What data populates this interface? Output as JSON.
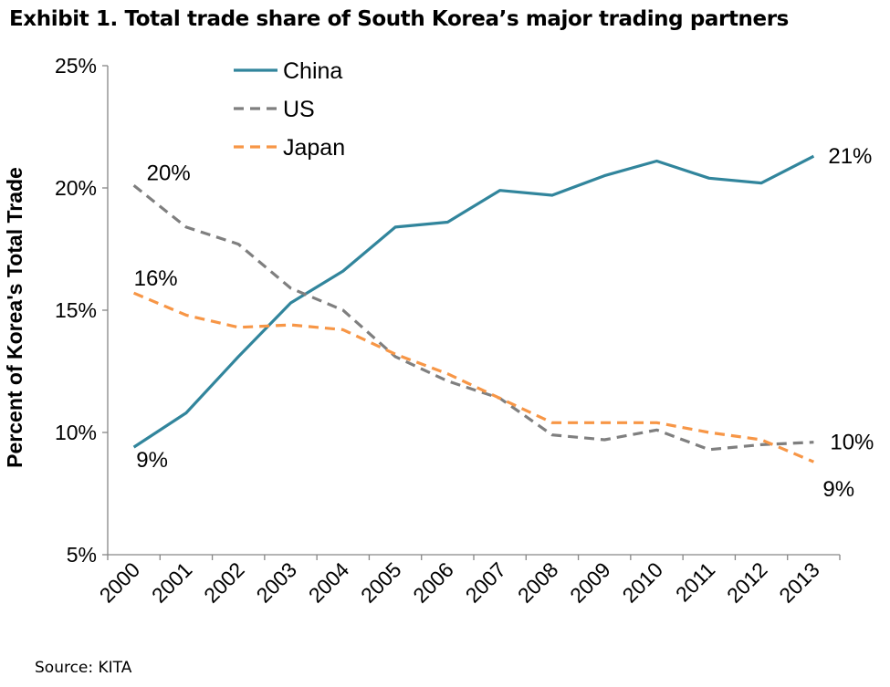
{
  "title": "Exhibit 1. Total trade share of South Korea’s major trading partners",
  "source": "Source: KITA",
  "chart_data": {
    "type": "line",
    "title": "Exhibit 1. Total trade share of South Korea’s major trading partners",
    "xlabel": "",
    "ylabel": "Percent of Korea's Total Trade",
    "x": [
      "2000",
      "2001",
      "2002",
      "2003",
      "2004",
      "2005",
      "2006",
      "2007",
      "2008",
      "2009",
      "2010",
      "2011",
      "2012",
      "2013"
    ],
    "ylim": [
      5,
      25
    ],
    "yticks": [
      5,
      10,
      15,
      20,
      25
    ],
    "ytick_labels": [
      "5%",
      "10%",
      "15%",
      "20%",
      "25%"
    ],
    "legend_position": "top-left",
    "series": [
      {
        "name": "China",
        "color": "#31859C",
        "dash": "solid",
        "values": [
          9.4,
          10.8,
          13.1,
          15.3,
          16.6,
          18.4,
          18.6,
          19.9,
          19.7,
          20.5,
          21.1,
          20.4,
          20.2,
          21.3
        ]
      },
      {
        "name": "US",
        "color": "#7F7F7F",
        "dash": "dashed",
        "values": [
          20.1,
          18.4,
          17.7,
          15.9,
          15.0,
          13.1,
          12.1,
          11.4,
          9.9,
          9.7,
          10.1,
          9.3,
          9.5,
          9.6
        ]
      },
      {
        "name": "Japan",
        "color": "#F79646",
        "dash": "dashed",
        "values": [
          15.7,
          14.8,
          14.3,
          14.4,
          14.2,
          13.2,
          12.4,
          11.4,
          10.4,
          10.4,
          10.4,
          10.0,
          9.7,
          8.8
        ]
      }
    ],
    "annotations": [
      {
        "series": "China",
        "point": "first",
        "text": "9%"
      },
      {
        "series": "China",
        "point": "last",
        "text": "21%"
      },
      {
        "series": "US",
        "point": "first",
        "text": "20%"
      },
      {
        "series": "US",
        "point": "last",
        "text": "10%"
      },
      {
        "series": "Japan",
        "point": "first",
        "text": "16%"
      },
      {
        "series": "Japan",
        "point": "last",
        "text": "9%"
      }
    ]
  }
}
